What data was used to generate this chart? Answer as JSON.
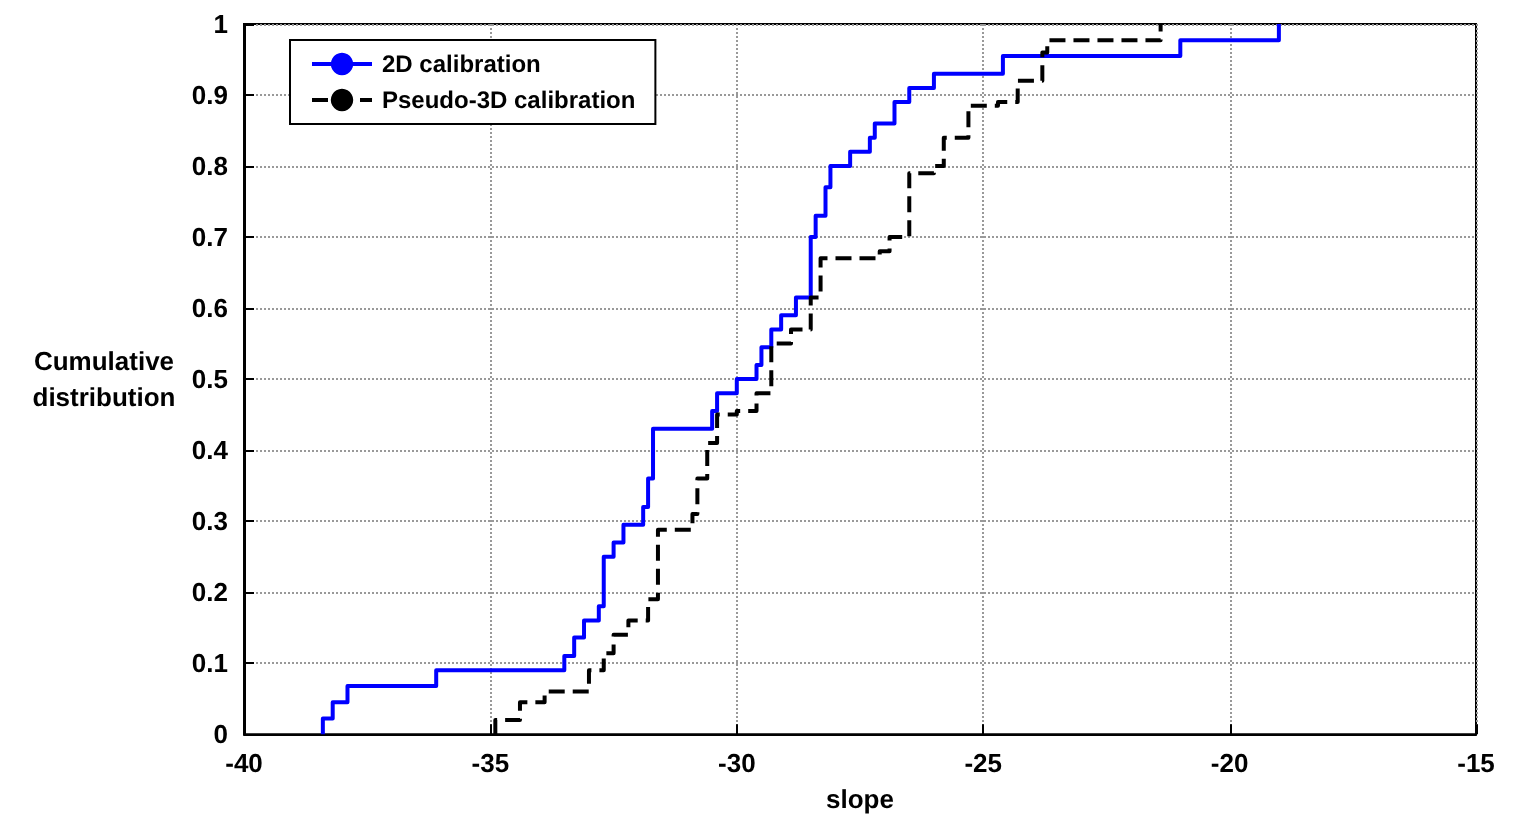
{
  "chart_data": {
    "type": "step",
    "xlabel": "slope",
    "ylabel": "Cumulative\ndistribution",
    "xlim": [
      -40,
      -15
    ],
    "xticks": [
      -40,
      -35,
      -30,
      -25,
      -20,
      -15
    ],
    "ylim": [
      0,
      1
    ],
    "yticks": [
      0,
      0.1,
      0.2,
      0.3,
      0.4,
      0.5,
      0.6,
      0.7,
      0.8,
      0.9,
      1
    ],
    "grid": true,
    "legend": "top left",
    "marker": "none",
    "series": [
      {
        "name": "2D calibration",
        "color": "#0000ff",
        "line_style": "solid",
        "x": [
          -38.4,
          -38.4,
          -38.2,
          -37.9,
          -36.1,
          -33.5,
          -33.3,
          -33.1,
          -32.8,
          -32.7,
          -32.5,
          -32.3,
          -31.9,
          -31.8,
          -31.7,
          -30.5,
          -30.4,
          -30.0,
          -29.6,
          -29.5,
          -29.3,
          -29.1,
          -28.8,
          -28.5,
          -28.4,
          -28.2,
          -28.1,
          -27.7,
          -27.3,
          -27.2,
          -26.8,
          -26.5,
          -26.0,
          -24.6,
          -21.0,
          -19.0
        ],
        "values": [
          0,
          0.022,
          0.045,
          0.068,
          0.09,
          0.11,
          0.136,
          0.16,
          0.18,
          0.25,
          0.27,
          0.295,
          0.32,
          0.36,
          0.43,
          0.455,
          0.48,
          0.5,
          0.52,
          0.545,
          0.57,
          0.59,
          0.615,
          0.7,
          0.73,
          0.77,
          0.8,
          0.82,
          0.84,
          0.86,
          0.89,
          0.91,
          0.93,
          0.955,
          0.977,
          1.0
        ]
      },
      {
        "name": "Pseudo-3D calibration",
        "color": "#000000",
        "line_style": "dashed",
        "x": [
          -34.9,
          -34.9,
          -34.4,
          -33.9,
          -33.0,
          -32.7,
          -32.5,
          -32.2,
          -31.8,
          -31.6,
          -30.9,
          -30.8,
          -30.6,
          -30.4,
          -30.0,
          -29.6,
          -29.3,
          -28.9,
          -28.5,
          -28.3,
          -27.1,
          -26.9,
          -26.5,
          -26.0,
          -25.8,
          -25.3,
          -24.7,
          -24.3,
          -23.8,
          -23.7,
          -21.4
        ],
        "values": [
          0,
          0.02,
          0.045,
          0.06,
          0.09,
          0.114,
          0.14,
          0.16,
          0.19,
          0.288,
          0.31,
          0.36,
          0.41,
          0.45,
          0.455,
          0.48,
          0.55,
          0.57,
          0.615,
          0.67,
          0.68,
          0.7,
          0.79,
          0.8,
          0.84,
          0.885,
          0.89,
          0.92,
          0.96,
          0.977,
          1.0
        ]
      }
    ]
  }
}
